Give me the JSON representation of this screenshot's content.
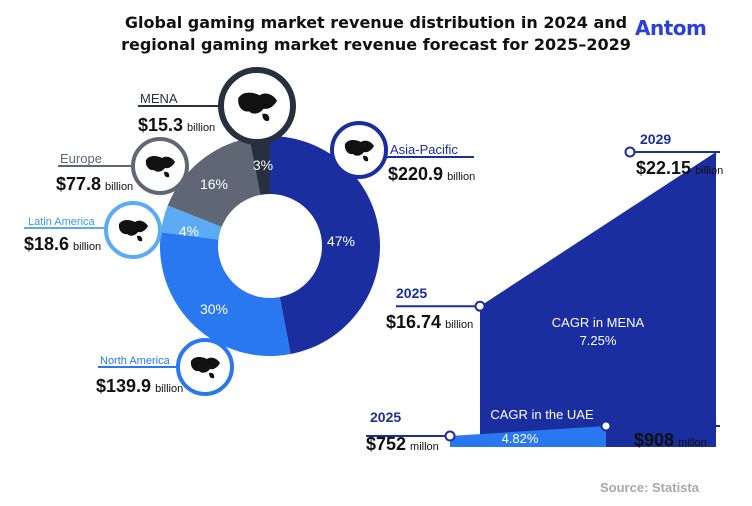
{
  "header": {
    "title_line1": "Global gaming market revenue distribution in 2024 and",
    "title_line2": "regional gaming market revenue forecast for 2025–2029",
    "brand": "Antom"
  },
  "footer": {
    "source": "Source: Statista"
  },
  "colors": {
    "asia_pacific": "#1a2ea0",
    "north_america": "#2a78f0",
    "latin_america": "#5aabf4",
    "europe": "#5f6775",
    "mena": "#27303f",
    "mena_area": "#1a2ea0",
    "uae_area": "#2a78f0",
    "line": "#1a2ea0"
  },
  "chart_data": [
    {
      "type": "pie",
      "slices": [
        {
          "name": "Asia-Pacific",
          "percent": 47,
          "percent_label": "47%",
          "value": 220.9,
          "value_label": "$220.9",
          "unit": "billion",
          "icon": "asia-map-icon",
          "color": "#1a2ea0"
        },
        {
          "name": "North America",
          "percent": 30,
          "percent_label": "30%",
          "value": 139.9,
          "value_label": "$139.9",
          "unit": "billion",
          "icon": "north-america-map-icon",
          "color": "#2a78f0"
        },
        {
          "name": "Latin America",
          "percent": 4,
          "percent_label": "4%",
          "value": 18.6,
          "value_label": "$18.6",
          "unit": "billion",
          "icon": "south-america-map-icon",
          "color": "#5aabf4"
        },
        {
          "name": "Europe",
          "percent": 16,
          "percent_label": "16%",
          "value": 77.8,
          "value_label": "$77.8",
          "unit": "billion",
          "icon": "europe-map-icon",
          "color": "#5f6775"
        },
        {
          "name": "MENA",
          "percent": 3,
          "percent_label": "3%",
          "value": 15.3,
          "value_label": "$15.3",
          "unit": "billion",
          "icon": "mena-map-icon",
          "color": "#27303f"
        }
      ]
    },
    {
      "type": "area",
      "name": "CAGR in MENA",
      "cagr": "7.25%",
      "x": [
        "2025",
        "2029"
      ],
      "values": [
        16.74,
        22.15
      ],
      "value_labels": [
        "$16.74",
        "$22.15"
      ],
      "unit": "billion"
    },
    {
      "type": "area",
      "name": "CAGR in the UAE",
      "cagr": "4.82%",
      "x": [
        "2025",
        "2029"
      ],
      "values": [
        752,
        908
      ],
      "value_labels": [
        "$752",
        "$908"
      ],
      "unit": "millon"
    }
  ]
}
